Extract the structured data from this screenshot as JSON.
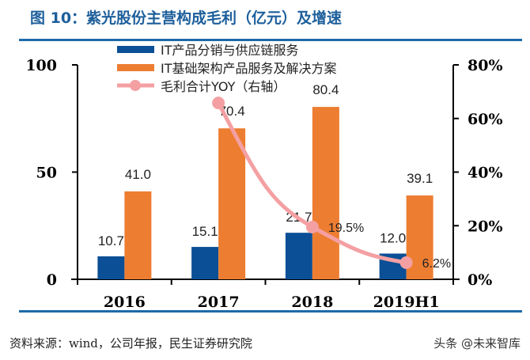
{
  "title": "图 10：紫光股份主营构成毛利（亿元）及增速",
  "source": "资料来源：wind，公司年报，民生证券研究院",
  "watermark": "头条 @未来智库",
  "chart_data": {
    "type": "bar",
    "categories": [
      "2016",
      "2017",
      "2018",
      "2019H1"
    ],
    "series": [
      {
        "name": "IT产品分销与供应链服务",
        "type": "bar",
        "axis": "left",
        "color": "#0b4f96",
        "values": [
          10.7,
          15.1,
          21.7,
          12.0
        ],
        "labels": [
          "10.7",
          "15.1",
          "21.7",
          "12.0"
        ]
      },
      {
        "name": "IT基础架构产品服务及解决方案",
        "type": "bar",
        "axis": "left",
        "color": "#ed7d31",
        "values": [
          41.0,
          70.4,
          80.4,
          39.1
        ],
        "labels": [
          "41.0",
          "70.4",
          "80.4",
          "39.1"
        ]
      },
      {
        "name": "毛利合计YOY（右轴）",
        "type": "line",
        "axis": "right",
        "color": "#f4a0a3",
        "values": [
          null,
          65.8,
          19.5,
          6.2
        ],
        "labels": [
          null,
          null,
          "19.5%",
          "6.2%"
        ]
      }
    ],
    "ylim": [
      0,
      100
    ],
    "yticks": [
      "0",
      "50",
      "100"
    ],
    "y2lim": [
      0,
      80
    ],
    "y2ticks": [
      "0%",
      "20%",
      "40%",
      "60%",
      "80%"
    ],
    "legend": "top-left"
  }
}
